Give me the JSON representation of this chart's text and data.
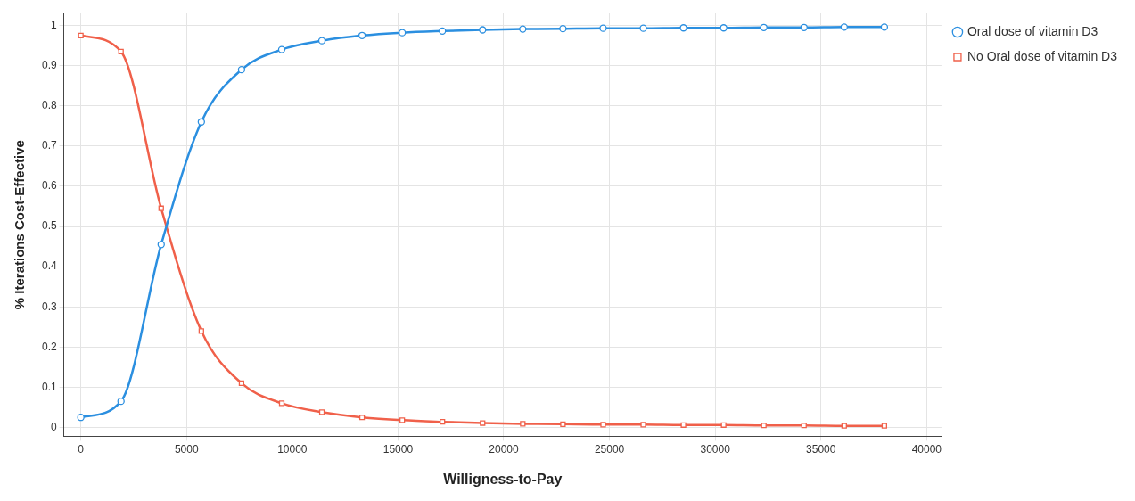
{
  "chart_data": {
    "type": "line",
    "xlabel": "Willigness-to-Pay",
    "ylabel": "% Iterations Cost-Effective",
    "x": [
      0,
      1900,
      3800,
      5700,
      7600,
      9500,
      11400,
      13300,
      15200,
      17100,
      19000,
      20900,
      22800,
      24700,
      26600,
      28500,
      30400,
      32300,
      34200,
      36100,
      38000
    ],
    "series": [
      {
        "name": "Oral dose of vitamin D3",
        "color": "#2b8fe0",
        "marker": "circle",
        "values": [
          0.025,
          0.065,
          0.455,
          0.76,
          0.89,
          0.94,
          0.962,
          0.975,
          0.982,
          0.986,
          0.989,
          0.991,
          0.992,
          0.993,
          0.993,
          0.994,
          0.994,
          0.995,
          0.995,
          0.996,
          0.996
        ]
      },
      {
        "name": "No Oral dose of vitamin D3",
        "color": "#f0604a",
        "marker": "square",
        "values": [
          0.975,
          0.935,
          0.545,
          0.24,
          0.11,
          0.06,
          0.038,
          0.025,
          0.018,
          0.014,
          0.011,
          0.009,
          0.008,
          0.007,
          0.007,
          0.006,
          0.006,
          0.005,
          0.005,
          0.004,
          0.004
        ]
      }
    ],
    "xlim": [
      -800,
      40700
    ],
    "xticks": [
      0,
      5000,
      10000,
      15000,
      20000,
      25000,
      30000,
      35000,
      40000
    ],
    "ylim": [
      -0.022,
      1.03
    ],
    "yticks": [
      0,
      0.1,
      0.2,
      0.3,
      0.4,
      0.5,
      0.6,
      0.7,
      0.8,
      0.9,
      1
    ],
    "grid": true,
    "legend": "top right",
    "line_style": "solid"
  }
}
